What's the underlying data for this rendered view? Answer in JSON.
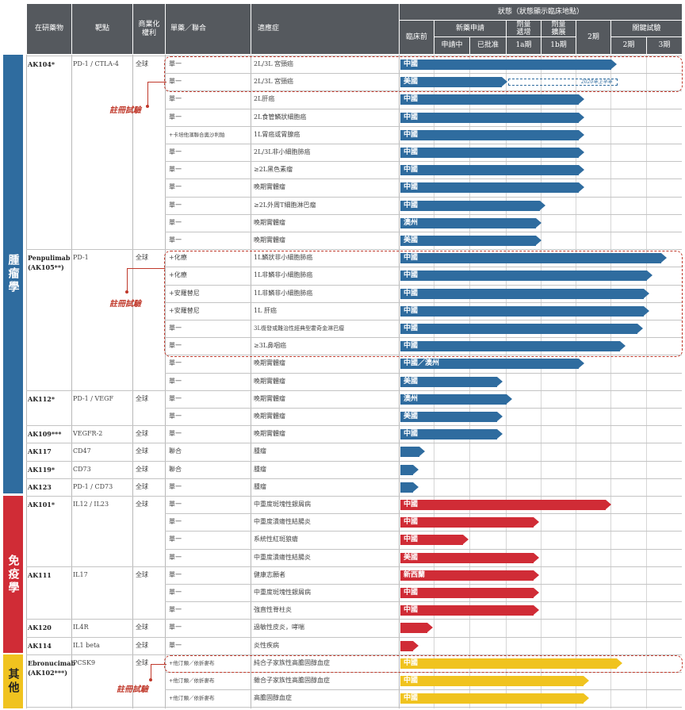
{
  "colors": {
    "header": "#55595e",
    "oncology": "#2f6c9f",
    "immunology": "#d02c36",
    "others": "#f0c31f",
    "register": "#c0392b"
  },
  "header": {
    "drug": "在研藥物",
    "target": "靶點",
    "rights": "商業化\n權利",
    "mode": "單藥／聯合",
    "indication": "適應症",
    "status": "狀態（狀態顯示臨床地點）",
    "preclinical": "臨床前",
    "nda": "新藥申請",
    "nda_pending": "申請中",
    "nda_approved": "已批准",
    "dose_esc": "劑量\n遞增",
    "dose_exp": "劑量\n擴展",
    "p1a": "1a期",
    "p1b": "1b期",
    "p2": "2期",
    "pivotal": "關鍵試驗",
    "piv2": "2期",
    "piv3": "3期"
  },
  "sections": {
    "oncology": "腫瘤學",
    "immunology": "免疫學",
    "others": "其他"
  },
  "register_label": "註冊試驗",
  "annotation": "2020年上半年",
  "drugs": [
    {
      "name": "AK104*",
      "target": "PD-1 / CTLA-4",
      "rights": "全球"
    },
    {
      "name": "Penpulimab",
      "name2": "(AK105**)",
      "target": "PD-1",
      "rights": "全球"
    },
    {
      "name": "AK112*",
      "target": "PD-1 / VEGF",
      "rights": "全球"
    },
    {
      "name": "AK109***",
      "target": "VEGFR-2",
      "rights": "全球"
    },
    {
      "name": "AK117",
      "target": "CD47",
      "rights": "全球"
    },
    {
      "name": "AK119*",
      "target": "CD73",
      "rights": "全球"
    },
    {
      "name": "AK123",
      "target": "PD-1 / CD73",
      "rights": "全球"
    },
    {
      "name": "AK101*",
      "target": "IL12 / IL23",
      "rights": "全球"
    },
    {
      "name": "AK111",
      "target": "IL17",
      "rights": "全球"
    },
    {
      "name": "AK120",
      "target": "IL4R",
      "rights": "全球"
    },
    {
      "name": "AK114",
      "target": "IL1 beta",
      "rights": "全球"
    },
    {
      "name": "Ebronucimab",
      "name2": "(AK102***)",
      "target": "PCSK9",
      "rights": "全球"
    }
  ],
  "rows": [
    {
      "mode": "單一",
      "ind": "2L/3L 宮頸癌",
      "loc": "中國"
    },
    {
      "mode": "單一",
      "ind": "2L/3L 宮頸癌",
      "loc": "美國"
    },
    {
      "mode": "單一",
      "ind": "2L肝癌",
      "loc": "中國"
    },
    {
      "mode": "單一",
      "ind": "2L食管鱗狀細胞癌",
      "loc": "中國"
    },
    {
      "mode": "+卡培他濱聯合奧沙利鉑",
      "ind": "1L胃癌或胃腺癌",
      "loc": "中國"
    },
    {
      "mode": "單一",
      "ind": "2L/3L非小細胞肺癌",
      "loc": "中國"
    },
    {
      "mode": "單一",
      "ind": "≥2L黑色素瘤",
      "loc": "中國"
    },
    {
      "mode": "單一",
      "ind": "晚期實體瘤",
      "loc": "中國"
    },
    {
      "mode": "單一",
      "ind": "≥2L外周T細胞淋巴瘤",
      "loc": "中國"
    },
    {
      "mode": "單一",
      "ind": "晚期實體瘤",
      "loc": "澳州"
    },
    {
      "mode": "單一",
      "ind": "晚期實體瘤",
      "loc": "美國"
    },
    {
      "mode": "+化療",
      "ind": "1L鱗狀非小細胞肺癌",
      "loc": "中國"
    },
    {
      "mode": "+化療",
      "ind": "1L非鱗非小細胞肺癌",
      "loc": "中國"
    },
    {
      "mode": "+安羅替尼",
      "ind": "1L非鱗非小細胞肺癌",
      "loc": "中國"
    },
    {
      "mode": "+安羅替尼",
      "ind": "1L 肝癌",
      "loc": "中國"
    },
    {
      "mode": "單一",
      "ind": "3L復發或難治性經典型霍奇金淋巴瘤",
      "loc": "中國"
    },
    {
      "mode": "單一",
      "ind": "≥3L鼻咽癌",
      "loc": "中國"
    },
    {
      "mode": "單一",
      "ind": "晚期實體瘤",
      "loc": "中國／澳州"
    },
    {
      "mode": "單一",
      "ind": "晚期實體瘤",
      "loc": "美國"
    },
    {
      "mode": "單一",
      "ind": "晚期實體瘤",
      "loc": "澳州"
    },
    {
      "mode": "單一",
      "ind": "晚期實體瘤",
      "loc": "美國"
    },
    {
      "mode": "單一",
      "ind": "晚期實體瘤",
      "loc": "中國"
    },
    {
      "mode": "聯合",
      "ind": "腫瘤",
      "loc": ""
    },
    {
      "mode": "聯合",
      "ind": "腫瘤",
      "loc": ""
    },
    {
      "mode": "單一",
      "ind": "腫瘤",
      "loc": ""
    },
    {
      "mode": "單一",
      "ind": "中重度斑塊性銀屑病",
      "loc": "中國"
    },
    {
      "mode": "單一",
      "ind": "中重度潰瘍性結腸炎",
      "loc": "中國"
    },
    {
      "mode": "單一",
      "ind": "系統性紅斑狼瘡",
      "loc": "中國"
    },
    {
      "mode": "單一",
      "ind": "中重度潰瘍性結腸炎",
      "loc": "美國"
    },
    {
      "mode": "單一",
      "ind": "健康志願者",
      "loc": "新西蘭"
    },
    {
      "mode": "單一",
      "ind": "中重度斑塊性銀屑病",
      "loc": "中國"
    },
    {
      "mode": "單一",
      "ind": "強直性脊柱炎",
      "loc": "中國"
    },
    {
      "mode": "單一",
      "ind": "過敏性皮炎，哮喘",
      "loc": ""
    },
    {
      "mode": "單一",
      "ind": "炎性疾病",
      "loc": ""
    },
    {
      "mode": "+他汀類／依折麥布",
      "ind": "純合子家族性高膽固醇血症",
      "loc": "中國"
    },
    {
      "mode": "+他汀類／依折麥布",
      "ind": "雜合子家族性高膽固醇血症",
      "loc": "中國"
    },
    {
      "mode": "+他汀類／依折麥布",
      "ind": "高膽固醇血症",
      "loc": "中國"
    }
  ]
}
